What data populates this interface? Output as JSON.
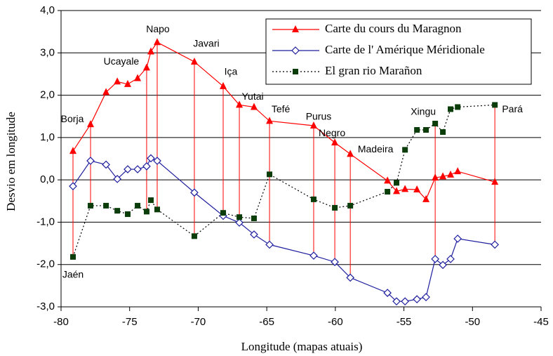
{
  "chart_data": {
    "type": "line",
    "x_label": "Longitude (mapas atuais)",
    "y_label": "Desvio em longitude",
    "x": [
      -79.13,
      -77.85,
      -76.72,
      -75.9,
      -75.14,
      -74.42,
      -73.76,
      -73.45,
      -72.99,
      -70.28,
      -68.18,
      -67.0,
      -65.93,
      -64.8,
      -61.58,
      -60.04,
      -58.91,
      -56.2,
      -55.54,
      -54.92,
      -54.05,
      -53.39,
      -52.72,
      -52.16,
      -51.6,
      -51.08,
      -48.37
    ],
    "series": [
      {
        "name": "Carte du cours du Maragnon",
        "color": "#ff0000",
        "marker": "triangle",
        "line_style": "solid",
        "values": [
          0.68,
          1.31,
          2.07,
          2.32,
          2.26,
          2.4,
          2.65,
          3.03,
          3.25,
          2.79,
          2.21,
          1.77,
          1.72,
          1.39,
          1.28,
          0.88,
          0.61,
          -0.02,
          -0.27,
          -0.22,
          -0.23,
          -0.46,
          0.05,
          0.08,
          0.12,
          0.2,
          -0.05
        ]
      },
      {
        "name": "Carte de l' Amérique Méridionale",
        "color": "#1e1e9e",
        "marker": "diamond",
        "line_style": "solid",
        "values": [
          -0.15,
          0.45,
          0.36,
          0.02,
          0.25,
          0.25,
          0.32,
          0.51,
          0.45,
          -0.3,
          -0.85,
          -1.01,
          -1.29,
          -1.53,
          -1.79,
          -1.94,
          -2.31,
          -2.67,
          -2.87,
          -2.87,
          -2.82,
          -2.77,
          -1.87,
          -2.01,
          -1.87,
          -1.39,
          -1.53
        ]
      },
      {
        "name": "El gran rio Marañon",
        "color": "#0b3d0b",
        "marker": "square",
        "line_style": "dotted",
        "values": [
          -1.82,
          -0.61,
          -0.61,
          -0.73,
          -0.81,
          -0.61,
          -0.75,
          -0.48,
          -0.7,
          -1.33,
          -0.78,
          -0.88,
          -0.91,
          0.13,
          -0.46,
          -0.66,
          -0.61,
          -0.28,
          -0.07,
          0.71,
          1.18,
          1.18,
          1.33,
          1.13,
          1.67,
          1.72,
          1.77
        ]
      }
    ],
    "annotations": [
      {
        "text": "Jaén",
        "x": -79.13
      },
      {
        "text": "Borja",
        "x": -77.85
      },
      {
        "text": "Ucayale",
        "x": -73.76
      },
      {
        "text": "Napo",
        "x": -72.99
      },
      {
        "text": "Javari",
        "x": -70.28
      },
      {
        "text": "Iça",
        "x": -68.18
      },
      {
        "text": "Yutai",
        "x": -67.0
      },
      {
        "text": "Tefé",
        "x": -64.8
      },
      {
        "text": "Purus",
        "x": -61.58
      },
      {
        "text": "Negro",
        "x": -60.04
      },
      {
        "text": "Madeira",
        "x": -58.91
      },
      {
        "text": "Xingu",
        "x": -52.72
      },
      {
        "text": "Pará",
        "x": -48.37
      }
    ],
    "drop_line_color": "#ff0000",
    "xlim": [
      -80,
      -45
    ],
    "xticks": [
      -80,
      -75,
      -70,
      -65,
      -60,
      -55,
      -50,
      -45
    ],
    "ylim": [
      -3,
      4
    ],
    "yticks": [
      {
        "value": -3,
        "label": "-3,0"
      },
      {
        "value": -2,
        "label": "-2,0"
      },
      {
        "value": -1,
        "label": "-1,0"
      },
      {
        "value": 0,
        "label": "0,0"
      },
      {
        "value": 1,
        "label": "1,0"
      },
      {
        "value": 2,
        "label": "2,0"
      },
      {
        "value": 3,
        "label": "3,0"
      },
      {
        "value": 4,
        "label": "4,0"
      }
    ],
    "grid": true,
    "legend": "top-right"
  }
}
